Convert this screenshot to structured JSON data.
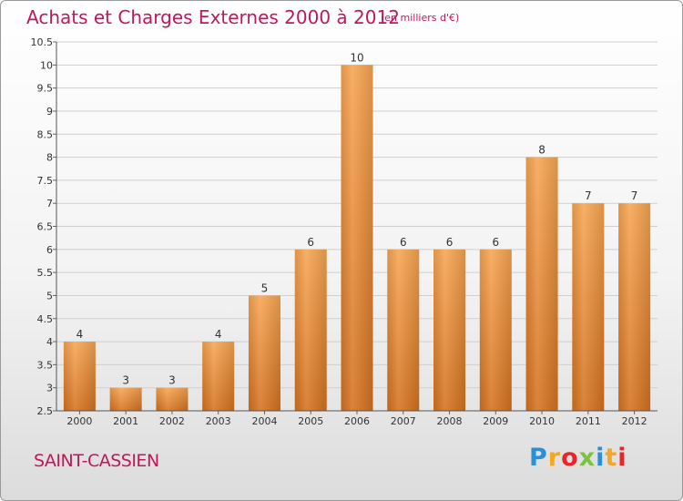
{
  "header": {
    "title": "Achats et Charges Externes 2000 à 2012",
    "subtitle": "(en milliers d'€)"
  },
  "footer": {
    "town": "SAINT-CASSIEN",
    "logo": [
      "P",
      "r",
      "o",
      "x",
      "i",
      "t",
      "i"
    ],
    "logo_colors": [
      "#2a8fd6",
      "#f5a623",
      "#e8262a",
      "#7cc242",
      "#2a8fd6",
      "#f5a623",
      "#e8262a"
    ]
  },
  "chart_data": {
    "type": "bar",
    "categories": [
      "2000",
      "2001",
      "2002",
      "2003",
      "2004",
      "2005",
      "2006",
      "2007",
      "2008",
      "2009",
      "2010",
      "2011",
      "2012"
    ],
    "values": [
      4,
      3,
      3,
      4,
      5,
      6,
      10,
      6,
      6,
      6,
      8,
      7,
      7
    ],
    "value_labels": [
      "4",
      "3",
      "3",
      "4",
      "5",
      "6",
      "10",
      "6",
      "6",
      "6",
      "8",
      "7",
      "7"
    ],
    "ylim": [
      2.5,
      10.5
    ],
    "yticks": [
      2.5,
      3,
      3.5,
      4,
      4.5,
      5,
      5.5,
      6,
      6.5,
      7,
      7.5,
      8,
      8.5,
      9,
      9.5,
      10,
      10.5
    ],
    "ytick_labels": [
      "2.5",
      "3",
      "3.5",
      "4",
      "4.5",
      "5",
      "5.5",
      "6",
      "6.5",
      "7",
      "7.5",
      "8",
      "8.5",
      "9",
      "9.5",
      "10",
      "10.5"
    ],
    "grid": true,
    "bar_color_light": "#f7a552",
    "bar_color_dark": "#d4711f"
  }
}
